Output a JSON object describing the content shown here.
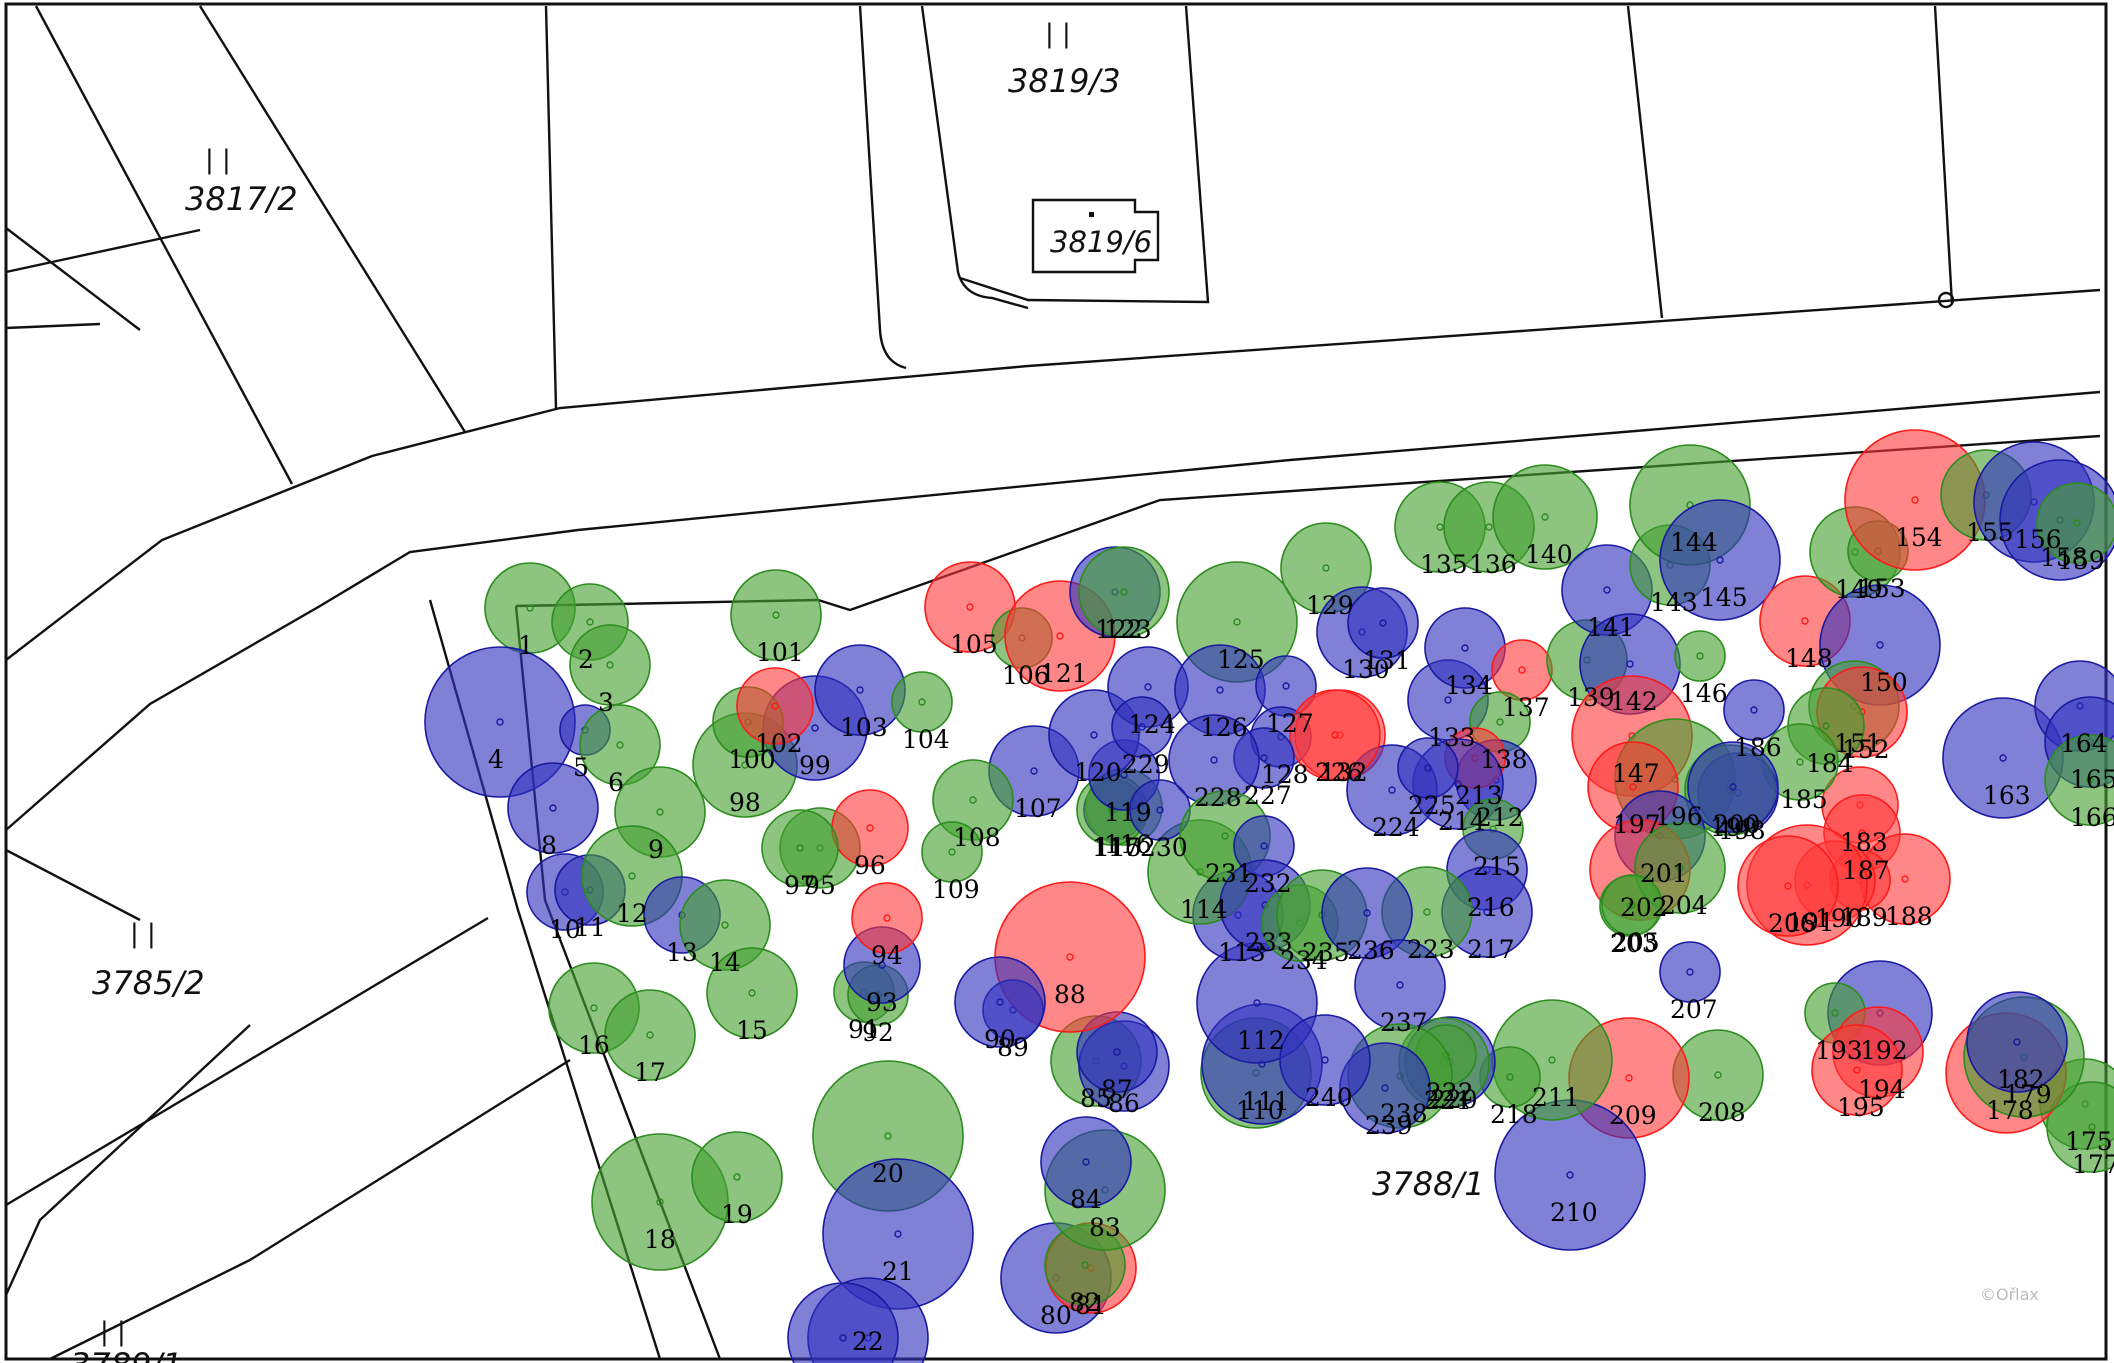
{
  "map": {
    "colors": {
      "green": "#3a9a2a",
      "red": "#ff3030",
      "blue": "#2a2ab0",
      "parcel_line": "#111111",
      "background": "#ffffff"
    },
    "parcel_labels": [
      "3817/2",
      "3819/3",
      "3819/6",
      "3785/2",
      "3788/1",
      "3789/1"
    ],
    "parcel_marker": "| |",
    "credit": "©Ořlax",
    "tree_status_colors": [
      "green",
      "red",
      "blue"
    ],
    "tree_labels": [
      "1",
      "2",
      "3",
      "4",
      "5",
      "6",
      "8",
      "9",
      "10",
      "11",
      "12",
      "13",
      "14",
      "15",
      "16",
      "17",
      "18",
      "19",
      "20",
      "21",
      "22",
      "80",
      "81",
      "82",
      "83",
      "84",
      "85",
      "86",
      "87",
      "88",
      "89",
      "90",
      "91",
      "92",
      "93",
      "94",
      "95",
      "96",
      "97",
      "98",
      "99",
      "100",
      "101",
      "102",
      "103",
      "104",
      "105",
      "106",
      "107",
      "108",
      "109",
      "110",
      "111",
      "112",
      "113",
      "114",
      "115",
      "116",
      "117",
      "119",
      "120",
      "121",
      "122",
      "123",
      "124",
      "125",
      "126",
      "127",
      "128",
      "129",
      "130",
      "131",
      "132",
      "133",
      "134",
      "135",
      "136",
      "137",
      "138",
      "139",
      "140",
      "141",
      "142",
      "143",
      "144",
      "145",
      "146",
      "147",
      "148",
      "149",
      "150",
      "151",
      "152",
      "153",
      "154",
      "155",
      "156",
      "158",
      "159",
      "163",
      "164",
      "165",
      "166",
      "175",
      "177",
      "178",
      "179",
      "182",
      "183",
      "184",
      "185",
      "186",
      "187",
      "188",
      "189",
      "190",
      "191",
      "192",
      "193",
      "194",
      "195",
      "196",
      "197",
      "198",
      "199",
      "200",
      "201",
      "202",
      "203",
      "204",
      "205",
      "206",
      "207",
      "208",
      "209",
      "210",
      "211",
      "212",
      "213",
      "214",
      "215",
      "216",
      "217",
      "218",
      "220",
      "221",
      "222",
      "223",
      "224",
      "225",
      "226",
      "227",
      "228",
      "229",
      "230",
      "231",
      "232",
      "233",
      "234",
      "235",
      "236",
      "237",
      "238",
      "239",
      "240"
    ]
  }
}
